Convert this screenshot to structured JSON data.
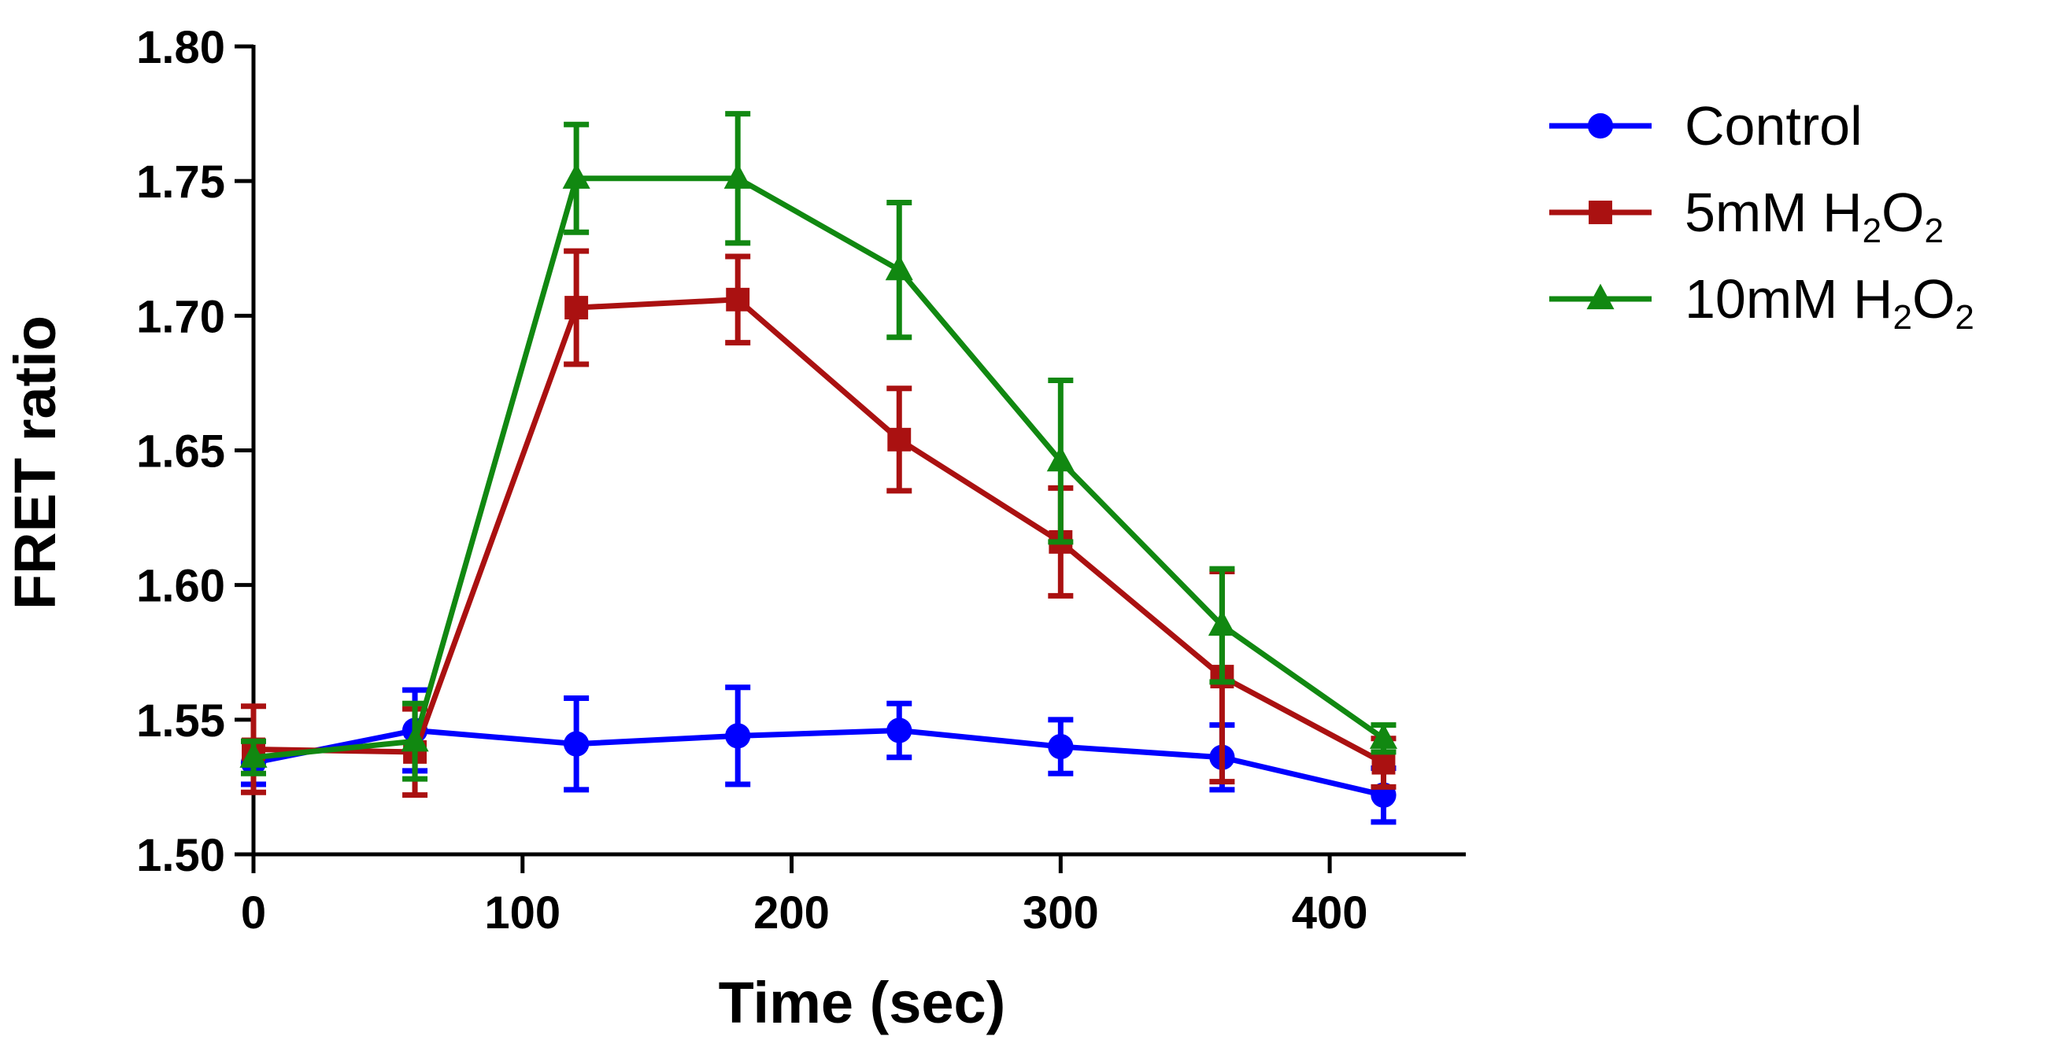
{
  "chart_data": {
    "type": "line",
    "title": "",
    "xlabel": "Time (sec)",
    "ylabel": "FRET ratio",
    "xlim": [
      0,
      450
    ],
    "ylim": [
      1.5,
      1.8
    ],
    "xticks": [
      0,
      100,
      200,
      300,
      400
    ],
    "xtick_labels": [
      "0",
      "100",
      "200",
      "300",
      "400"
    ],
    "yticks": [
      1.5,
      1.55,
      1.6,
      1.65,
      1.7,
      1.75,
      1.8
    ],
    "ytick_labels": [
      "1.50",
      "1.55",
      "1.60",
      "1.65",
      "1.70",
      "1.75",
      "1.80"
    ],
    "grid": false,
    "legend_position": "top-right outside",
    "x": [
      0,
      60,
      120,
      180,
      240,
      300,
      360,
      420
    ],
    "series": [
      {
        "name": "Control",
        "label_parts": [
          {
            "text": "Control",
            "sub": false
          }
        ],
        "color": "#0000ff",
        "marker": "circle",
        "values": [
          1.534,
          1.546,
          1.541,
          1.544,
          1.546,
          1.54,
          1.536,
          1.522
        ],
        "errors": [
          0.008,
          0.015,
          0.017,
          0.018,
          0.01,
          0.01,
          0.012,
          0.01
        ]
      },
      {
        "name": "5mM H2O2",
        "label_parts": [
          {
            "text": "5mM H",
            "sub": false
          },
          {
            "text": "2",
            "sub": true
          },
          {
            "text": "O",
            "sub": false
          },
          {
            "text": "2",
            "sub": true
          }
        ],
        "color": "#aa1111",
        "marker": "square",
        "values": [
          1.539,
          1.538,
          1.703,
          1.706,
          1.654,
          1.616,
          1.566,
          1.534
        ],
        "errors": [
          0.016,
          0.016,
          0.021,
          0.016,
          0.019,
          0.02,
          0.039,
          0.009
        ]
      },
      {
        "name": "10mM H2O2",
        "label_parts": [
          {
            "text": "10mM H",
            "sub": false
          },
          {
            "text": "2",
            "sub": true
          },
          {
            "text": "O",
            "sub": false
          },
          {
            "text": "2",
            "sub": true
          }
        ],
        "color": "#118811",
        "marker": "triangle",
        "values": [
          1.536,
          1.542,
          1.751,
          1.751,
          1.717,
          1.646,
          1.585,
          1.543
        ],
        "errors": [
          0.006,
          0.014,
          0.02,
          0.024,
          0.025,
          0.03,
          0.021,
          0.005
        ]
      }
    ]
  }
}
